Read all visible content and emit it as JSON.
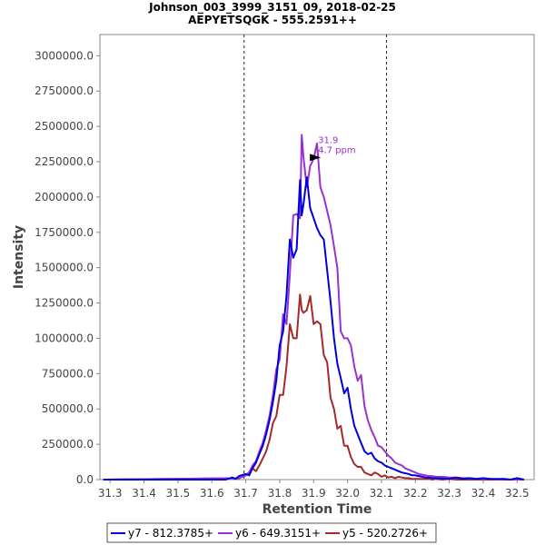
{
  "chart_data": {
    "type": "line",
    "title": "Johnson_003_3999_3151_09, 2018-02-25",
    "subtitle": "AEPYETSQGK - 555.2591++",
    "xlabel": "Retention Time",
    "ylabel": "Intensity",
    "xlim": [
      31.27,
      32.55
    ],
    "ylim": [
      0,
      3150000
    ],
    "xticks": [
      "31.3",
      "31.4",
      "31.5",
      "31.6",
      "31.7",
      "31.8",
      "31.9",
      "32.0",
      "32.1",
      "32.2",
      "32.3",
      "32.4",
      "32.5"
    ],
    "yticks": [
      "0.0",
      "250000.0",
      "500000.0",
      "750000.0",
      "1000000.0",
      "1250000.0",
      "1500000.0",
      "1750000.0",
      "2000000.0",
      "2250000.0",
      "2500000.0",
      "2750000.0",
      "3000000.0"
    ],
    "boundaries": [
      31.695,
      32.115
    ],
    "annotation": {
      "x": 31.905,
      "y": 2280000,
      "rt_label": "31.9",
      "ppm_label": "4.7 ppm",
      "color": "#9a32cd"
    },
    "legend_position": "bottom",
    "series": [
      {
        "name": "y7 - 812.3785+",
        "color": "#0000dd",
        "x": [
          31.28,
          31.64,
          31.66,
          31.67,
          31.68,
          31.7,
          31.71,
          31.72,
          31.73,
          31.74,
          31.75,
          31.76,
          31.77,
          31.78,
          31.79,
          31.8,
          31.81,
          31.82,
          31.83,
          31.84,
          31.85,
          31.86,
          31.865,
          31.87,
          31.88,
          31.89,
          31.9,
          31.91,
          31.92,
          31.93,
          31.94,
          31.95,
          31.96,
          31.97,
          31.98,
          31.99,
          32.0,
          32.01,
          32.02,
          32.03,
          32.04,
          32.05,
          32.06,
          32.07,
          32.08,
          32.09,
          32.1,
          32.11,
          32.12,
          32.13,
          32.14,
          32.15,
          32.16,
          32.17,
          32.18,
          32.19,
          32.2,
          32.21,
          32.22,
          32.23,
          32.24,
          32.25,
          32.26,
          32.28,
          32.3,
          32.32,
          32.34,
          32.36,
          32.38,
          32.4,
          32.42,
          32.44,
          32.46,
          32.48,
          32.5,
          32.52
        ],
        "values": [
          0,
          0,
          15000,
          5000,
          25000,
          40000,
          30000,
          80000,
          120000,
          180000,
          240000,
          320000,
          420000,
          550000,
          700000,
          950000,
          1050000,
          1300000,
          1700000,
          1570000,
          1630000,
          2120000,
          1870000,
          1950000,
          2140000,
          1920000,
          1850000,
          1780000,
          1730000,
          1700000,
          1480000,
          1260000,
          1000000,
          820000,
          720000,
          610000,
          650000,
          500000,
          380000,
          320000,
          260000,
          200000,
          180000,
          190000,
          150000,
          130000,
          120000,
          100000,
          90000,
          80000,
          70000,
          60000,
          50000,
          45000,
          40000,
          30000,
          30000,
          25000,
          20000,
          15000,
          15000,
          10000,
          10000,
          8000,
          5000,
          15000,
          5000,
          10000,
          5000,
          10000,
          5000,
          5000,
          5000,
          0,
          10000,
          0
        ]
      },
      {
        "name": "y6 - 649.3151+",
        "color": "#9a32cd",
        "x": [
          31.28,
          31.68,
          31.7,
          31.71,
          31.72,
          31.73,
          31.74,
          31.75,
          31.76,
          31.77,
          31.78,
          31.79,
          31.8,
          31.81,
          31.82,
          31.83,
          31.84,
          31.85,
          31.86,
          31.865,
          31.87,
          31.88,
          31.89,
          31.9,
          31.91,
          31.92,
          31.93,
          31.94,
          31.95,
          31.96,
          31.97,
          31.98,
          31.99,
          32.0,
          32.01,
          32.02,
          32.03,
          32.04,
          32.05,
          32.06,
          32.07,
          32.08,
          32.09,
          32.1,
          32.11,
          32.12,
          32.13,
          32.14,
          32.15,
          32.16,
          32.17,
          32.18,
          32.19,
          32.2,
          32.21,
          32.22,
          32.23,
          32.24,
          32.25,
          32.26,
          32.28,
          32.3,
          32.32,
          32.34,
          32.36,
          32.38,
          32.4,
          32.42,
          32.44,
          32.46,
          32.48,
          32.5,
          32.52
        ],
        "values": [
          0,
          10000,
          30000,
          50000,
          100000,
          130000,
          200000,
          260000,
          350000,
          450000,
          600000,
          780000,
          850000,
          1170000,
          1100000,
          1450000,
          1870000,
          1880000,
          1850000,
          2440000,
          2280000,
          2070000,
          2220000,
          2270000,
          2380000,
          2070000,
          2000000,
          1900000,
          1800000,
          1650000,
          1500000,
          1050000,
          1000000,
          1000000,
          950000,
          800000,
          700000,
          740000,
          520000,
          420000,
          350000,
          300000,
          240000,
          230000,
          200000,
          170000,
          150000,
          120000,
          110000,
          100000,
          80000,
          70000,
          60000,
          50000,
          40000,
          35000,
          30000,
          25000,
          25000,
          20000,
          20000,
          15000,
          15000,
          10000,
          10000,
          5000,
          5000,
          5000,
          0,
          5000,
          0,
          0,
          0
        ]
      },
      {
        "name": "y5 - 520.2726+",
        "color": "#a52a2a",
        "x": [
          31.28,
          31.68,
          31.7,
          31.71,
          31.72,
          31.73,
          31.74,
          31.75,
          31.76,
          31.77,
          31.78,
          31.79,
          31.8,
          31.81,
          31.82,
          31.83,
          31.84,
          31.85,
          31.86,
          31.865,
          31.87,
          31.88,
          31.89,
          31.9,
          31.91,
          31.92,
          31.93,
          31.94,
          31.95,
          31.96,
          31.97,
          31.98,
          31.99,
          32.0,
          32.01,
          32.02,
          32.03,
          32.04,
          32.05,
          32.06,
          32.07,
          32.08,
          32.09,
          32.1,
          32.11,
          32.12,
          32.13,
          32.14,
          32.15,
          32.16,
          32.17,
          32.18,
          32.19,
          32.2,
          32.21,
          32.22,
          32.23,
          32.24,
          32.25,
          32.26,
          32.28,
          32.3,
          32.32,
          32.34,
          32.36,
          32.38,
          32.4,
          32.42,
          32.44,
          32.46,
          32.48,
          32.5,
          32.52
        ],
        "values": [
          0,
          10000,
          30000,
          50000,
          80000,
          60000,
          100000,
          150000,
          200000,
          280000,
          400000,
          450000,
          600000,
          600000,
          800000,
          1100000,
          1000000,
          1000000,
          1310000,
          1200000,
          1180000,
          1200000,
          1300000,
          1100000,
          1120000,
          1100000,
          880000,
          830000,
          580000,
          500000,
          360000,
          380000,
          240000,
          240000,
          160000,
          110000,
          90000,
          90000,
          50000,
          40000,
          30000,
          50000,
          40000,
          20000,
          30000,
          15000,
          20000,
          10000,
          20000,
          15000,
          10000,
          10000,
          5000,
          5000,
          5000,
          5000,
          5000,
          5000,
          0,
          5000,
          0,
          5000,
          0,
          0,
          0,
          0,
          0,
          0,
          0,
          0,
          0,
          0,
          0
        ]
      }
    ]
  }
}
